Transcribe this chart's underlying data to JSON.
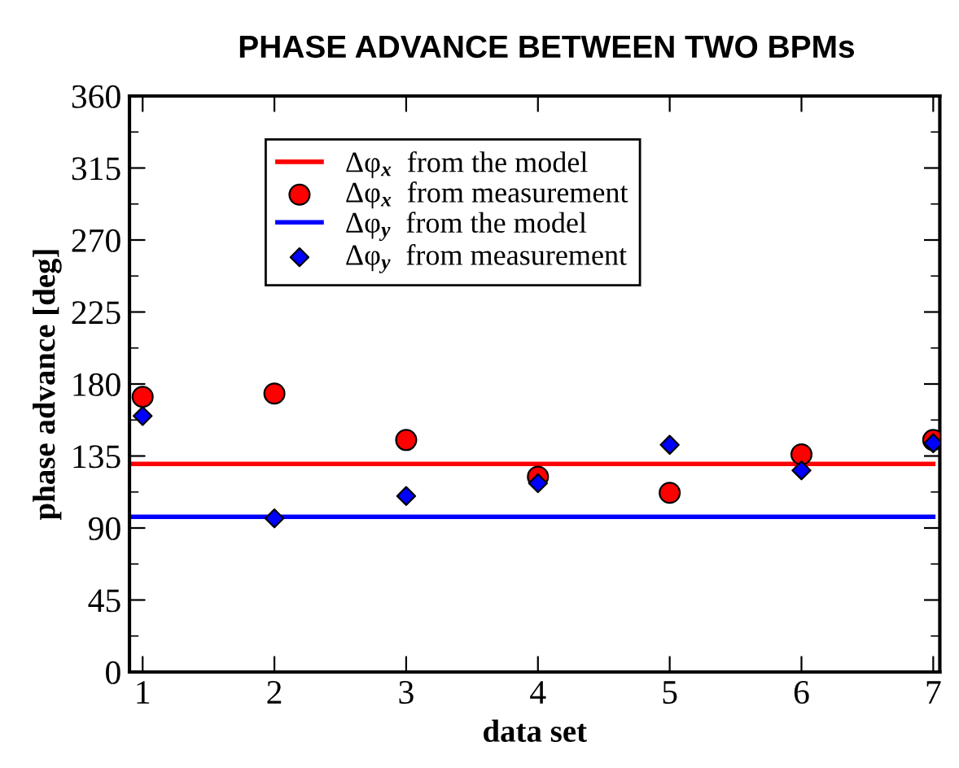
{
  "chart_data": {
    "type": "scatter",
    "title": "PHASE ADVANCE BETWEEN TWO BPMs",
    "xlabel": "data set",
    "ylabel": "phase advance [deg]",
    "xlim": [
      0.9,
      7.05
    ],
    "xticks": [
      1,
      2,
      3,
      4,
      5,
      6,
      7
    ],
    "ylim": [
      0,
      360
    ],
    "yticks": [
      0,
      45,
      90,
      135,
      180,
      225,
      270,
      315,
      360
    ],
    "grid": false,
    "legend": "top left",
    "series": [
      {
        "name": "Δφ$_{x}$  from the model",
        "type": "line",
        "line_style": "solid",
        "marker": "none",
        "color": "#ff0000",
        "x": [
          0.9,
          7
        ],
        "values": [
          130,
          130
        ]
      },
      {
        "name": "Δφ$_{x}$  from measurement",
        "marker": "circle",
        "color": "#ff0000",
        "x": [
          1,
          2,
          3,
          4,
          5,
          6,
          7
        ],
        "values": [
          172,
          174,
          145,
          122,
          112,
          136,
          145
        ]
      },
      {
        "name": "Δφ$_{y}$  from the model",
        "type": "line",
        "line_style": "solid",
        "marker": "none",
        "color": "#0000ff",
        "x": [
          0.9,
          7
        ],
        "values": [
          97,
          97
        ]
      },
      {
        "name": "Δφ$_{y}$  from measurement",
        "marker": "diamond",
        "color": "#0000ff",
        "x": [
          1,
          2,
          3,
          4,
          5,
          6,
          7
        ],
        "values": [
          160,
          96,
          110,
          118,
          142,
          126,
          143
        ]
      }
    ]
  }
}
